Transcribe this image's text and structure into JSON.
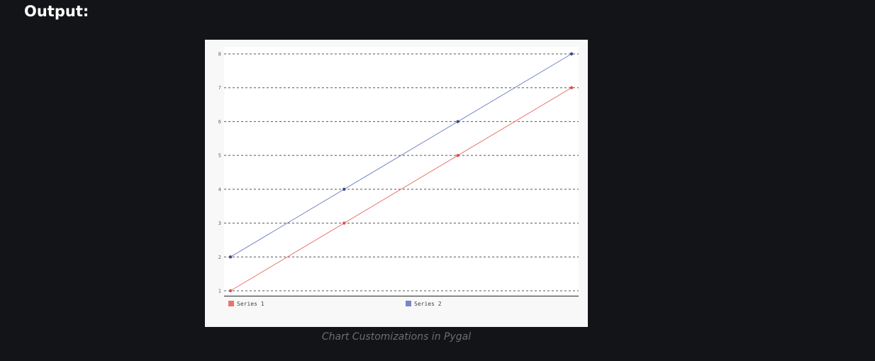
{
  "page": {
    "heading": "Output:",
    "caption": "Chart Customizations in Pygal"
  },
  "colors": {
    "background": "#131417",
    "chart_background": "#f8f8f8",
    "plot_background": "#ffffff",
    "series_1": "#e7756e",
    "series_2": "#7886c9",
    "series_2_dot": "#3c4a8a",
    "grid": "#555555"
  },
  "chart_data": {
    "type": "line",
    "title": "",
    "xlabel": "",
    "ylabel": "",
    "x": [
      0,
      1,
      2,
      3
    ],
    "ylim": [
      1,
      8
    ],
    "yticks": [
      "1",
      "2",
      "3",
      "4",
      "5",
      "6",
      "7",
      "8"
    ],
    "grid": true,
    "legend": "bottom",
    "series": [
      {
        "name": "Series 1",
        "values": [
          1,
          3,
          5,
          7
        ],
        "color": "#e7756e",
        "dot_color": "#e2524a"
      },
      {
        "name": "Series 2",
        "values": [
          2,
          4,
          6,
          8
        ],
        "color": "#7886c9",
        "dot_color": "#3c4a8a"
      }
    ]
  }
}
